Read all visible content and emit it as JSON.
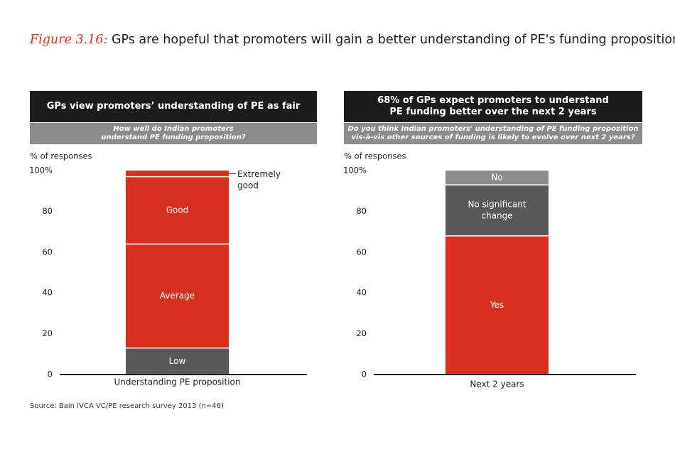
{
  "title": {
    "label": "Figure 3.16:",
    "text": "GPs are hopeful that promoters will gain a better understanding of PE's funding proposition"
  },
  "source": "Source: Bain IVCA VC/PE research survey 2013 (n=46)",
  "colors": {
    "red": "#d7301f",
    "dark_gray": "#595959",
    "light_gray": "#8c8c8c",
    "header": "#1c1c1c"
  },
  "chart_data": [
    {
      "type": "bar",
      "stacked": true,
      "header": "GPs view promoters’ understanding of PE as fair",
      "question": [
        "How well do Indian promoters",
        "understand PE funding proposition?"
      ],
      "ylabel": "% of responses",
      "ylim": [
        0,
        100
      ],
      "yticks": [
        "0",
        "20",
        "40",
        "60",
        "80",
        "100%"
      ],
      "categories": [
        "Understanding PE proposition"
      ],
      "series": [
        {
          "name": "Low",
          "values": [
            13
          ],
          "color": "#595959"
        },
        {
          "name": "Average",
          "values": [
            51
          ],
          "color": "#d7301f"
        },
        {
          "name": "Good",
          "values": [
            33
          ],
          "color": "#d7301f"
        },
        {
          "name": "Extremely good",
          "values": [
            3
          ],
          "color": "#d7301f"
        }
      ],
      "callout_lines": [
        "Extremely",
        "good"
      ]
    },
    {
      "type": "bar",
      "stacked": true,
      "header": [
        "68% of GPs expect promoters to understand",
        "PE funding better over the next 2 years"
      ],
      "question": [
        "Do you think Indian promoters' understanding of PE funding proposition",
        "vis-à-vis other sources of funding is likely to evolve over next 2 years?"
      ],
      "ylabel": "% of responses",
      "ylim": [
        0,
        100
      ],
      "yticks": [
        "0",
        "20",
        "40",
        "60",
        "80",
        "100%"
      ],
      "categories": [
        "Next 2 years"
      ],
      "series": [
        {
          "name": "Yes",
          "values": [
            68
          ],
          "color": "#d7301f"
        },
        {
          "name": "No significant change",
          "label_lines": [
            "No significant",
            "change"
          ],
          "values": [
            25
          ],
          "color": "#595959"
        },
        {
          "name": "No",
          "values": [
            7
          ],
          "color": "#8c8c8c"
        }
      ]
    }
  ]
}
